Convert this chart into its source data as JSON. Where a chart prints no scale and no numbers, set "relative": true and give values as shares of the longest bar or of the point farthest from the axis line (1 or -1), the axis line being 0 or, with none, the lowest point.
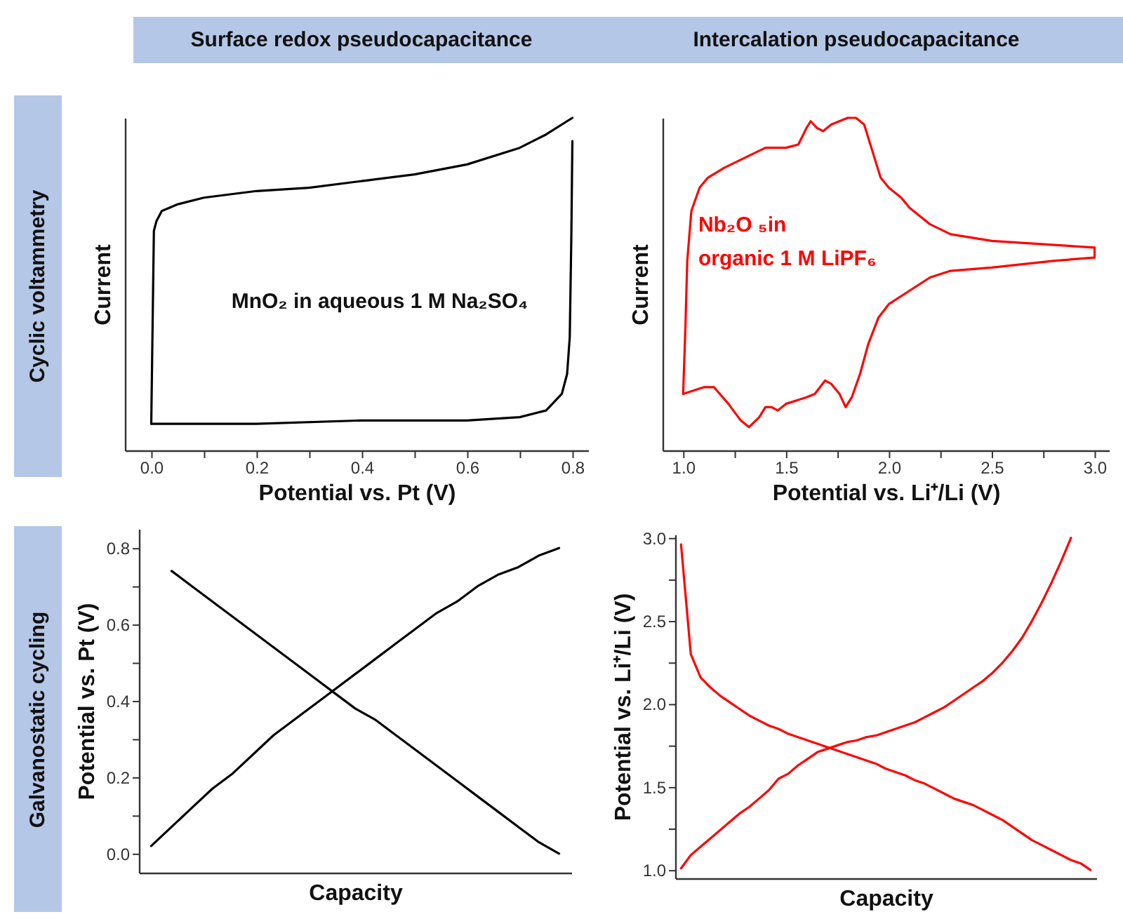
{
  "chart_data": [
    {
      "type": "line",
      "title": "Surface redox pseudocapacitance",
      "xlabel": "Potential vs. Pt (V)",
      "ylabel": "Current",
      "annotations": [
        "Cyclic voltammetry",
        "MnO₂ in aqueous 1 M Na₂SO₄"
      ],
      "relative": true,
      "xlim": [
        -0.05,
        0.83
      ],
      "xticks": [
        {
          "value": 0,
          "label": "0.0"
        },
        {
          "value": 0.1,
          "label": null
        },
        0.2,
        {
          "value": 0.3,
          "label": null
        },
        0.4,
        {
          "value": 0.5,
          "label": null
        },
        0.6,
        {
          "value": 0.7,
          "label": null
        },
        0.8
      ],
      "series": [
        {
          "color": "#000000",
          "x": [
            0,
            0.005,
            0.01,
            0.02,
            0.05,
            0.1,
            0.2,
            0.3,
            0.4,
            0.5,
            0.6,
            0.7,
            0.75,
            0.8
          ],
          "values": [
            0.08,
            0.66,
            0.69,
            0.72,
            0.74,
            0.76,
            0.78,
            0.79,
            0.81,
            0.83,
            0.86,
            0.91,
            0.95,
            1
          ]
        },
        {
          "color": "#000000",
          "x": [
            0,
            0.05,
            0.2,
            0.4,
            0.6,
            0.7,
            0.75,
            0.78,
            0.79,
            0.795,
            0.798,
            0.8
          ],
          "values": [
            0.08,
            0.08,
            0.08,
            0.09,
            0.09,
            0.1,
            0.12,
            0.17,
            0.23,
            0.34,
            0.64,
            0.93
          ]
        }
      ]
    },
    {
      "type": "line",
      "title": "Intercalation pseudocapacitance",
      "xlabel": "Potential vs. Li⁺/Li (V)",
      "ylabel": "Current",
      "annotations": [
        "Nb₂O ₅in\norganic 1 M LiPF₆"
      ],
      "relative": true,
      "xlim": [
        0.9,
        3.07
      ],
      "xticks": [
        {
          "value": 1,
          "label": "1.0"
        },
        {
          "value": 1.25,
          "label": null
        },
        1.5,
        {
          "value": 1.75,
          "label": null
        },
        {
          "value": 2,
          "label": "2.0"
        },
        {
          "value": 2.25,
          "label": null
        },
        2.5,
        {
          "value": 2.75,
          "label": null
        },
        {
          "value": 3,
          "label": "3.0"
        }
      ],
      "series": [
        {
          "color": "#ff0000",
          "x": [
            1.0,
            1.01,
            1.02,
            1.04,
            1.08,
            1.12,
            1.2,
            1.3,
            1.4,
            1.5,
            1.56,
            1.6,
            1.62,
            1.65,
            1.68,
            1.72,
            1.8,
            1.84,
            1.88,
            1.92,
            1.96,
            2.0,
            2.06,
            2.1,
            2.2,
            2.3,
            2.5,
            2.75,
            3.0
          ],
          "values": [
            0.17,
            0.35,
            0.57,
            0.72,
            0.79,
            0.82,
            0.85,
            0.88,
            0.91,
            0.91,
            0.92,
            0.97,
            0.99,
            0.97,
            0.96,
            0.98,
            1.0,
            1.0,
            0.98,
            0.9,
            0.82,
            0.79,
            0.76,
            0.73,
            0.68,
            0.65,
            0.63,
            0.62,
            0.61
          ]
        },
        {
          "color": "#ff0000",
          "x": [
            1.0,
            1.05,
            1.1,
            1.15,
            1.22,
            1.28,
            1.32,
            1.37,
            1.4,
            1.43,
            1.46,
            1.5,
            1.55,
            1.6,
            1.64,
            1.69,
            1.72,
            1.76,
            1.79,
            1.82,
            1.86,
            1.9,
            1.95,
            2.0,
            2.1,
            2.2,
            2.3,
            2.5,
            2.8,
            3.0,
            3.0
          ],
          "values": [
            0.17,
            0.18,
            0.19,
            0.19,
            0.14,
            0.09,
            0.07,
            0.1,
            0.13,
            0.13,
            0.12,
            0.14,
            0.15,
            0.16,
            0.17,
            0.21,
            0.2,
            0.17,
            0.13,
            0.16,
            0.23,
            0.32,
            0.4,
            0.44,
            0.48,
            0.52,
            0.54,
            0.55,
            0.57,
            0.58,
            0.61
          ]
        }
      ]
    },
    {
      "type": "line",
      "xlabel": "Capacity",
      "ylabel": "Potential vs. Pt (V)",
      "annotations": [
        "Galvanostatic cycling"
      ],
      "categories": [
        null,
        null,
        null,
        null,
        null,
        null,
        null,
        null,
        null,
        null,
        null,
        null,
        null,
        null,
        null,
        null,
        null,
        null,
        null,
        null,
        null
      ],
      "ylim": [
        -0.05,
        0.85
      ],
      "yticks": [
        {
          "value": 0,
          "label": "0.0"
        },
        {
          "value": 0.1,
          "label": null
        },
        0.2,
        {
          "value": 0.3,
          "label": null
        },
        0.4,
        {
          "value": 0.5,
          "label": null
        },
        0.6,
        {
          "value": 0.7,
          "label": null
        },
        0.8
      ],
      "series": [
        {
          "color": "#000000",
          "values": [
            0.02,
            0.07,
            0.12,
            0.17,
            0.21,
            0.26,
            0.31,
            0.35,
            0.39,
            0.43,
            0.47,
            0.51,
            0.55,
            0.59,
            0.63,
            0.66,
            0.7,
            0.73,
            0.75,
            0.78,
            0.8
          ]
        },
        {
          "color": "#000000",
          "values": [
            null,
            0.74,
            0.7,
            0.66,
            0.62,
            0.58,
            0.54,
            0.5,
            0.46,
            0.42,
            0.38,
            0.35,
            0.31,
            0.27,
            0.23,
            0.19,
            0.15,
            0.11,
            0.07,
            0.03,
            0.0
          ]
        }
      ]
    },
    {
      "type": "line",
      "xlabel": "Capacity",
      "ylabel": "Potential vs. Li⁺/Li (V)",
      "categories": [
        null,
        null,
        null,
        null,
        null,
        null,
        null,
        null,
        null,
        null,
        null,
        null,
        null,
        null,
        null,
        null,
        null,
        null,
        null,
        null,
        null,
        null,
        null,
        null,
        null,
        null,
        null,
        null,
        null,
        null,
        null,
        null,
        null,
        null,
        null,
        null,
        null,
        null,
        null,
        null,
        null,
        null,
        null
      ],
      "ylim": [
        0.95,
        3.02
      ],
      "yticks": [
        {
          "value": 1,
          "label": "1.0"
        },
        {
          "value": 1.25,
          "label": null
        },
        1.5,
        {
          "value": 1.75,
          "label": null
        },
        {
          "value": 2,
          "label": "2.0"
        },
        {
          "value": 2.25,
          "label": null
        },
        2.5,
        {
          "value": 2.75,
          "label": null
        },
        {
          "value": 3,
          "label": "3.0"
        }
      ],
      "series": [
        {
          "color": "#ff0000",
          "values": [
            2.96,
            2.3,
            2.16,
            2.1,
            2.05,
            2.01,
            1.97,
            1.93,
            1.9,
            1.87,
            1.85,
            1.82,
            1.8,
            1.78,
            1.76,
            1.74,
            1.72,
            1.7,
            1.68,
            1.66,
            1.64,
            1.61,
            1.59,
            1.57,
            1.54,
            1.52,
            1.49,
            1.46,
            1.43,
            1.41,
            1.39,
            1.36,
            1.33,
            1.3,
            1.26,
            1.22,
            1.18,
            1.15,
            1.12,
            1.09,
            1.06,
            1.04,
            1.0
          ]
        },
        {
          "color": "#ff0000",
          "values": [
            1.01,
            1.09,
            1.14,
            1.19,
            1.24,
            1.29,
            1.34,
            1.38,
            1.43,
            1.48,
            1.55,
            1.58,
            1.63,
            1.67,
            1.71,
            1.73,
            1.75,
            1.77,
            1.78,
            1.8,
            1.81,
            1.83,
            1.85,
            1.87,
            1.89,
            1.92,
            1.95,
            1.98,
            2.02,
            2.06,
            2.1,
            2.14,
            2.19,
            2.25,
            2.32,
            2.4,
            2.5,
            2.61,
            2.73,
            2.86,
            3.0,
            null,
            null
          ]
        }
      ]
    }
  ]
}
